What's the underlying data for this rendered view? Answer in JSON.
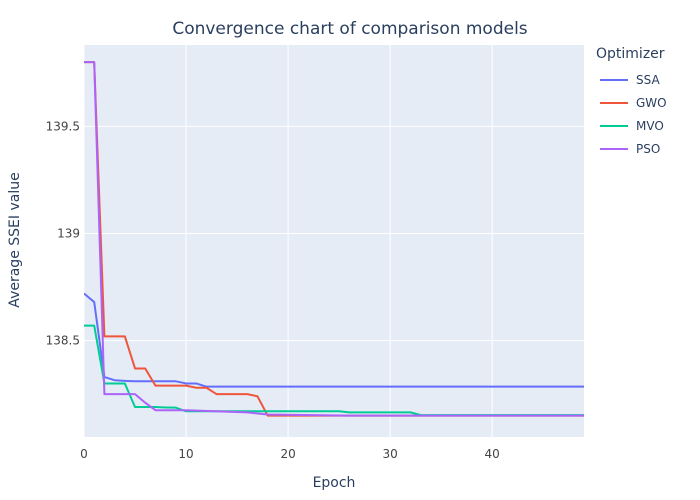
{
  "chart_data": {
    "type": "line",
    "title": "Convergence chart of comparison models",
    "xlabel": "Epoch",
    "ylabel": "Average SSEI value",
    "xlim": [
      0,
      49
    ],
    "ylim": [
      138.05,
      139.88
    ],
    "x_ticks": [
      0,
      10,
      20,
      30,
      40
    ],
    "x_tick_labels": [
      "0",
      "10",
      "20",
      "30",
      "40"
    ],
    "y_ticks": [
      138.5,
      139,
      139.5
    ],
    "y_tick_labels": [
      "138.5",
      "139",
      "139.5"
    ],
    "grid": true,
    "plot_background": "#E5ECF6",
    "legend_title": "Optimizer",
    "legend_position": "right",
    "series": [
      {
        "name": "SSA",
        "color": "#636EFA",
        "x": [
          0,
          1,
          2,
          3,
          4,
          5,
          6,
          7,
          8,
          9,
          10,
          11,
          12,
          13,
          49
        ],
        "y": [
          138.72,
          138.68,
          138.33,
          138.315,
          138.312,
          138.31,
          138.31,
          138.31,
          138.31,
          138.31,
          138.3,
          138.3,
          138.285,
          138.285,
          138.285
        ]
      },
      {
        "name": "GWO",
        "color": "#EF553B",
        "x": [
          0,
          1,
          2,
          3,
          4,
          5,
          6,
          7,
          8,
          9,
          10,
          11,
          12,
          13,
          14,
          15,
          16,
          17,
          18,
          49
        ],
        "y": [
          139.8,
          139.8,
          138.52,
          138.52,
          138.52,
          138.37,
          138.37,
          138.29,
          138.29,
          138.29,
          138.29,
          138.28,
          138.28,
          138.25,
          138.25,
          138.25,
          138.25,
          138.24,
          138.15,
          138.15
        ]
      },
      {
        "name": "MVO",
        "color": "#00CC96",
        "x": [
          0,
          1,
          2,
          3,
          4,
          5,
          6,
          7,
          8,
          9,
          10,
          25,
          26,
          32,
          33,
          49
        ],
        "y": [
          138.57,
          138.57,
          138.3,
          138.3,
          138.3,
          138.19,
          138.19,
          138.19,
          138.188,
          138.187,
          138.17,
          138.17,
          138.165,
          138.165,
          138.152,
          138.152
        ]
      },
      {
        "name": "PSO",
        "color": "#AB63FA",
        "x": [
          0,
          1,
          2,
          3,
          4,
          5,
          6,
          7,
          8,
          10,
          16,
          18,
          26,
          49
        ],
        "y": [
          139.8,
          139.8,
          138.25,
          138.25,
          138.25,
          138.25,
          138.21,
          138.175,
          138.175,
          138.175,
          138.165,
          138.155,
          138.15,
          138.15
        ]
      }
    ]
  }
}
